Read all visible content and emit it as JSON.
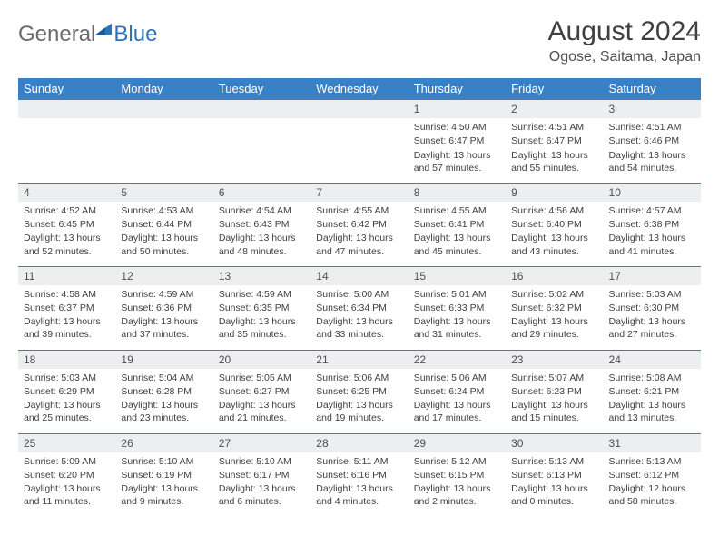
{
  "brand": {
    "word1": "General",
    "word2": "Blue"
  },
  "title": "August 2024",
  "location": "Ogose, Saitama, Japan",
  "colors": {
    "header_bg": "#3a80c4",
    "header_text": "#ffffff",
    "daynum_bg": "#eceeef",
    "border": "#3a80c4",
    "text": "#404040",
    "brand_gray": "#6b6b6b",
    "brand_blue": "#2f72b8"
  },
  "dow": [
    "Sunday",
    "Monday",
    "Tuesday",
    "Wednesday",
    "Thursday",
    "Friday",
    "Saturday"
  ],
  "weeks": [
    [
      null,
      null,
      null,
      null,
      {
        "n": "1",
        "sr": "Sunrise: 4:50 AM",
        "ss": "Sunset: 6:47 PM",
        "dl": "Daylight: 13 hours and 57 minutes."
      },
      {
        "n": "2",
        "sr": "Sunrise: 4:51 AM",
        "ss": "Sunset: 6:47 PM",
        "dl": "Daylight: 13 hours and 55 minutes."
      },
      {
        "n": "3",
        "sr": "Sunrise: 4:51 AM",
        "ss": "Sunset: 6:46 PM",
        "dl": "Daylight: 13 hours and 54 minutes."
      }
    ],
    [
      {
        "n": "4",
        "sr": "Sunrise: 4:52 AM",
        "ss": "Sunset: 6:45 PM",
        "dl": "Daylight: 13 hours and 52 minutes."
      },
      {
        "n": "5",
        "sr": "Sunrise: 4:53 AM",
        "ss": "Sunset: 6:44 PM",
        "dl": "Daylight: 13 hours and 50 minutes."
      },
      {
        "n": "6",
        "sr": "Sunrise: 4:54 AM",
        "ss": "Sunset: 6:43 PM",
        "dl": "Daylight: 13 hours and 48 minutes."
      },
      {
        "n": "7",
        "sr": "Sunrise: 4:55 AM",
        "ss": "Sunset: 6:42 PM",
        "dl": "Daylight: 13 hours and 47 minutes."
      },
      {
        "n": "8",
        "sr": "Sunrise: 4:55 AM",
        "ss": "Sunset: 6:41 PM",
        "dl": "Daylight: 13 hours and 45 minutes."
      },
      {
        "n": "9",
        "sr": "Sunrise: 4:56 AM",
        "ss": "Sunset: 6:40 PM",
        "dl": "Daylight: 13 hours and 43 minutes."
      },
      {
        "n": "10",
        "sr": "Sunrise: 4:57 AM",
        "ss": "Sunset: 6:38 PM",
        "dl": "Daylight: 13 hours and 41 minutes."
      }
    ],
    [
      {
        "n": "11",
        "sr": "Sunrise: 4:58 AM",
        "ss": "Sunset: 6:37 PM",
        "dl": "Daylight: 13 hours and 39 minutes."
      },
      {
        "n": "12",
        "sr": "Sunrise: 4:59 AM",
        "ss": "Sunset: 6:36 PM",
        "dl": "Daylight: 13 hours and 37 minutes."
      },
      {
        "n": "13",
        "sr": "Sunrise: 4:59 AM",
        "ss": "Sunset: 6:35 PM",
        "dl": "Daylight: 13 hours and 35 minutes."
      },
      {
        "n": "14",
        "sr": "Sunrise: 5:00 AM",
        "ss": "Sunset: 6:34 PM",
        "dl": "Daylight: 13 hours and 33 minutes."
      },
      {
        "n": "15",
        "sr": "Sunrise: 5:01 AM",
        "ss": "Sunset: 6:33 PM",
        "dl": "Daylight: 13 hours and 31 minutes."
      },
      {
        "n": "16",
        "sr": "Sunrise: 5:02 AM",
        "ss": "Sunset: 6:32 PM",
        "dl": "Daylight: 13 hours and 29 minutes."
      },
      {
        "n": "17",
        "sr": "Sunrise: 5:03 AM",
        "ss": "Sunset: 6:30 PM",
        "dl": "Daylight: 13 hours and 27 minutes."
      }
    ],
    [
      {
        "n": "18",
        "sr": "Sunrise: 5:03 AM",
        "ss": "Sunset: 6:29 PM",
        "dl": "Daylight: 13 hours and 25 minutes."
      },
      {
        "n": "19",
        "sr": "Sunrise: 5:04 AM",
        "ss": "Sunset: 6:28 PM",
        "dl": "Daylight: 13 hours and 23 minutes."
      },
      {
        "n": "20",
        "sr": "Sunrise: 5:05 AM",
        "ss": "Sunset: 6:27 PM",
        "dl": "Daylight: 13 hours and 21 minutes."
      },
      {
        "n": "21",
        "sr": "Sunrise: 5:06 AM",
        "ss": "Sunset: 6:25 PM",
        "dl": "Daylight: 13 hours and 19 minutes."
      },
      {
        "n": "22",
        "sr": "Sunrise: 5:06 AM",
        "ss": "Sunset: 6:24 PM",
        "dl": "Daylight: 13 hours and 17 minutes."
      },
      {
        "n": "23",
        "sr": "Sunrise: 5:07 AM",
        "ss": "Sunset: 6:23 PM",
        "dl": "Daylight: 13 hours and 15 minutes."
      },
      {
        "n": "24",
        "sr": "Sunrise: 5:08 AM",
        "ss": "Sunset: 6:21 PM",
        "dl": "Daylight: 13 hours and 13 minutes."
      }
    ],
    [
      {
        "n": "25",
        "sr": "Sunrise: 5:09 AM",
        "ss": "Sunset: 6:20 PM",
        "dl": "Daylight: 13 hours and 11 minutes."
      },
      {
        "n": "26",
        "sr": "Sunrise: 5:10 AM",
        "ss": "Sunset: 6:19 PM",
        "dl": "Daylight: 13 hours and 9 minutes."
      },
      {
        "n": "27",
        "sr": "Sunrise: 5:10 AM",
        "ss": "Sunset: 6:17 PM",
        "dl": "Daylight: 13 hours and 6 minutes."
      },
      {
        "n": "28",
        "sr": "Sunrise: 5:11 AM",
        "ss": "Sunset: 6:16 PM",
        "dl": "Daylight: 13 hours and 4 minutes."
      },
      {
        "n": "29",
        "sr": "Sunrise: 5:12 AM",
        "ss": "Sunset: 6:15 PM",
        "dl": "Daylight: 13 hours and 2 minutes."
      },
      {
        "n": "30",
        "sr": "Sunrise: 5:13 AM",
        "ss": "Sunset: 6:13 PM",
        "dl": "Daylight: 13 hours and 0 minutes."
      },
      {
        "n": "31",
        "sr": "Sunrise: 5:13 AM",
        "ss": "Sunset: 6:12 PM",
        "dl": "Daylight: 12 hours and 58 minutes."
      }
    ]
  ]
}
